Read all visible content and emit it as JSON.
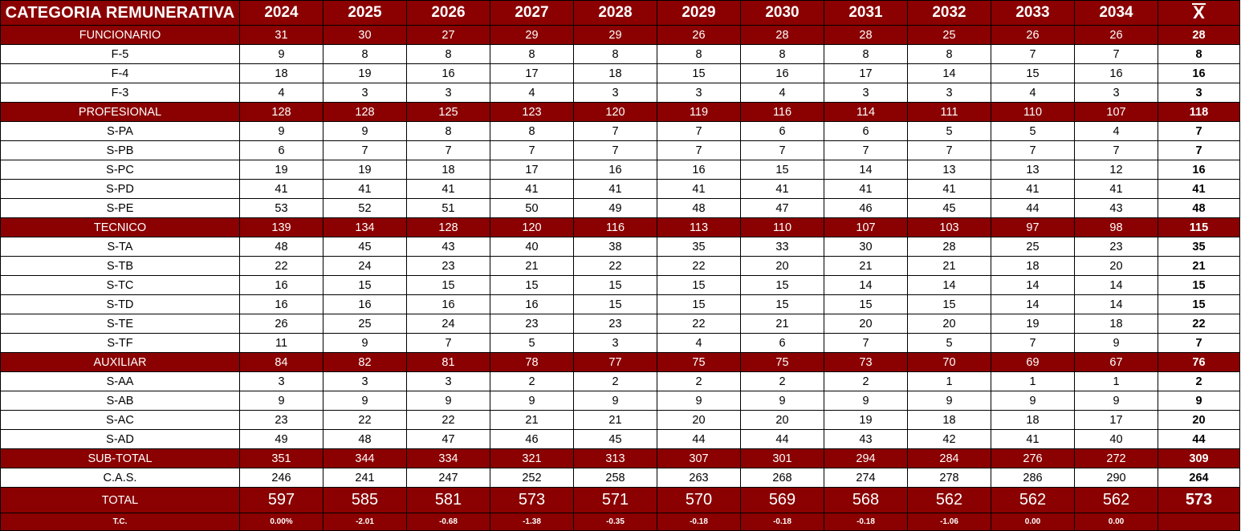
{
  "header": {
    "category_label": "CATEGORIA REMUNERATIVA",
    "years": [
      "2024",
      "2025",
      "2026",
      "2027",
      "2028",
      "2029",
      "2030",
      "2031",
      "2032",
      "2033",
      "2034"
    ],
    "mean_label": "X"
  },
  "rows": [
    {
      "type": "cat",
      "label": "FUNCIONARIO",
      "values": [
        "31",
        "30",
        "27",
        "29",
        "29",
        "26",
        "28",
        "28",
        "25",
        "26",
        "26"
      ],
      "mean": "28"
    },
    {
      "type": "sub",
      "label": "F-5",
      "values": [
        "9",
        "8",
        "8",
        "8",
        "8",
        "8",
        "8",
        "8",
        "8",
        "7",
        "7"
      ],
      "mean": "8"
    },
    {
      "type": "sub",
      "label": "F-4",
      "values": [
        "18",
        "19",
        "16",
        "17",
        "18",
        "15",
        "16",
        "17",
        "14",
        "15",
        "16"
      ],
      "mean": "16"
    },
    {
      "type": "sub",
      "label": "F-3",
      "values": [
        "4",
        "3",
        "3",
        "4",
        "3",
        "3",
        "4",
        "3",
        "3",
        "4",
        "3"
      ],
      "mean": "3"
    },
    {
      "type": "cat",
      "label": "PROFESIONAL",
      "values": [
        "128",
        "128",
        "125",
        "123",
        "120",
        "119",
        "116",
        "114",
        "111",
        "110",
        "107"
      ],
      "mean": "118"
    },
    {
      "type": "sub",
      "label": "S-PA",
      "values": [
        "9",
        "9",
        "8",
        "8",
        "7",
        "7",
        "6",
        "6",
        "5",
        "5",
        "4"
      ],
      "mean": "7"
    },
    {
      "type": "sub",
      "label": "S-PB",
      "values": [
        "6",
        "7",
        "7",
        "7",
        "7",
        "7",
        "7",
        "7",
        "7",
        "7",
        "7"
      ],
      "mean": "7"
    },
    {
      "type": "sub",
      "label": "S-PC",
      "values": [
        "19",
        "19",
        "18",
        "17",
        "16",
        "16",
        "15",
        "14",
        "13",
        "13",
        "12"
      ],
      "mean": "16"
    },
    {
      "type": "sub",
      "label": "S-PD",
      "values": [
        "41",
        "41",
        "41",
        "41",
        "41",
        "41",
        "41",
        "41",
        "41",
        "41",
        "41"
      ],
      "mean": "41"
    },
    {
      "type": "sub",
      "label": "S-PE",
      "values": [
        "53",
        "52",
        "51",
        "50",
        "49",
        "48",
        "47",
        "46",
        "45",
        "44",
        "43"
      ],
      "mean": "48"
    },
    {
      "type": "cat",
      "label": "TECNICO",
      "values": [
        "139",
        "134",
        "128",
        "120",
        "116",
        "113",
        "110",
        "107",
        "103",
        "97",
        "98"
      ],
      "mean": "115"
    },
    {
      "type": "sub",
      "label": "S-TA",
      "values": [
        "48",
        "45",
        "43",
        "40",
        "38",
        "35",
        "33",
        "30",
        "28",
        "25",
        "23"
      ],
      "mean": "35"
    },
    {
      "type": "sub",
      "label": "S-TB",
      "values": [
        "22",
        "24",
        "23",
        "21",
        "22",
        "22",
        "20",
        "21",
        "21",
        "18",
        "20"
      ],
      "mean": "21"
    },
    {
      "type": "sub",
      "label": "S-TC",
      "values": [
        "16",
        "15",
        "15",
        "15",
        "15",
        "15",
        "15",
        "14",
        "14",
        "14",
        "14"
      ],
      "mean": "15"
    },
    {
      "type": "sub",
      "label": "S-TD",
      "values": [
        "16",
        "16",
        "16",
        "16",
        "15",
        "15",
        "15",
        "15",
        "15",
        "14",
        "14"
      ],
      "mean": "15"
    },
    {
      "type": "sub",
      "label": "S-TE",
      "values": [
        "26",
        "25",
        "24",
        "23",
        "23",
        "22",
        "21",
        "20",
        "20",
        "19",
        "18"
      ],
      "mean": "22"
    },
    {
      "type": "sub",
      "label": "S-TF",
      "values": [
        "11",
        "9",
        "7",
        "5",
        "3",
        "4",
        "6",
        "7",
        "5",
        "7",
        "9"
      ],
      "mean": "7"
    },
    {
      "type": "cat",
      "label": "AUXILIAR",
      "values": [
        "84",
        "82",
        "81",
        "78",
        "77",
        "75",
        "75",
        "73",
        "70",
        "69",
        "67"
      ],
      "mean": "76"
    },
    {
      "type": "sub",
      "label": "S-AA",
      "values": [
        "3",
        "3",
        "3",
        "2",
        "2",
        "2",
        "2",
        "2",
        "1",
        "1",
        "1"
      ],
      "mean": "2"
    },
    {
      "type": "sub",
      "label": "S-AB",
      "values": [
        "9",
        "9",
        "9",
        "9",
        "9",
        "9",
        "9",
        "9",
        "9",
        "9",
        "9"
      ],
      "mean": "9"
    },
    {
      "type": "sub",
      "label": "S-AC",
      "values": [
        "23",
        "22",
        "22",
        "21",
        "21",
        "20",
        "20",
        "19",
        "18",
        "18",
        "17"
      ],
      "mean": "20"
    },
    {
      "type": "sub",
      "label": "S-AD",
      "values": [
        "49",
        "48",
        "47",
        "46",
        "45",
        "44",
        "44",
        "43",
        "42",
        "41",
        "40"
      ],
      "mean": "44"
    },
    {
      "type": "cat",
      "label": "SUB-TOTAL",
      "values": [
        "351",
        "344",
        "334",
        "321",
        "313",
        "307",
        "301",
        "294",
        "284",
        "276",
        "272"
      ],
      "mean": "309"
    },
    {
      "type": "sub",
      "label": "C.A.S.",
      "values": [
        "246",
        "241",
        "247",
        "252",
        "258",
        "263",
        "268",
        "274",
        "278",
        "286",
        "290"
      ],
      "mean": "264"
    },
    {
      "type": "total",
      "label": "TOTAL",
      "values": [
        "597",
        "585",
        "581",
        "573",
        "571",
        "570",
        "569",
        "568",
        "562",
        "562",
        "562"
      ],
      "mean": "573"
    },
    {
      "type": "tc",
      "label": "T.C.",
      "values": [
        "0.00%",
        "-2.01",
        "-0.68",
        "-1.38",
        "-0.35",
        "-0.18",
        "-0.18",
        "-0.18",
        "-1.06",
        "0.00",
        "0.00"
      ],
      "mean": ""
    }
  ],
  "colors": {
    "header_bg": "#8b0000",
    "header_text": "#ffffff",
    "body_bg": "#ffffff",
    "border": "#000000"
  }
}
